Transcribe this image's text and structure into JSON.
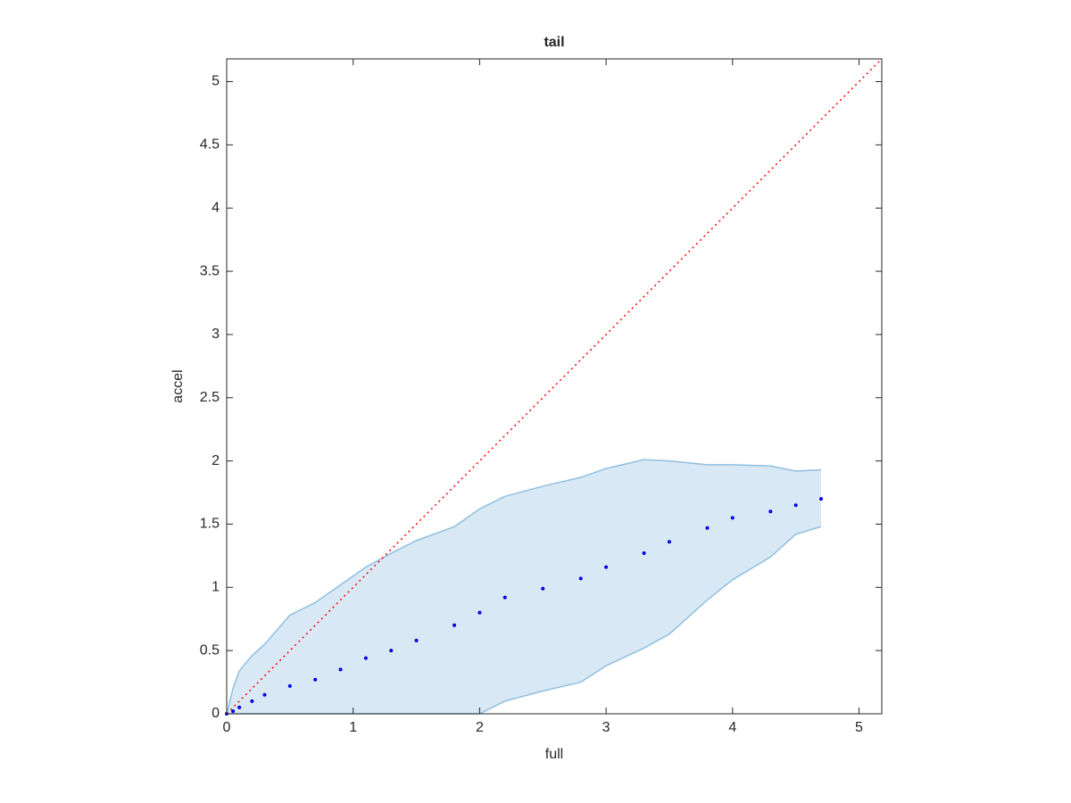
{
  "chart_data": {
    "type": "line",
    "title": "tail",
    "x_label": "full",
    "y_label": "accel",
    "x": [
      0,
      0.05,
      0.1,
      0.2,
      0.3,
      0.5,
      0.7,
      0.9,
      1.1,
      1.3,
      1.5,
      1.8,
      2.0,
      2.2,
      2.5,
      2.8,
      3.0,
      3.3,
      3.5,
      3.8,
      4.0,
      4.3,
      4.5,
      4.7
    ],
    "series": [
      {
        "kind": "band",
        "color": "#d9e8f5",
        "edge_color": "#8fbfe0",
        "lower": [
          0,
          0,
          0,
          0,
          0,
          0,
          0,
          0,
          0,
          0,
          0,
          0,
          0,
          0.1,
          0.18,
          0.25,
          0.38,
          0.52,
          0.63,
          0.9,
          1.06,
          1.24,
          1.42,
          1.48
        ],
        "upper": [
          0,
          0.2,
          0.34,
          0.46,
          0.55,
          0.78,
          0.88,
          1.02,
          1.16,
          1.27,
          1.37,
          1.48,
          1.62,
          1.72,
          1.8,
          1.87,
          1.94,
          2.01,
          2.0,
          1.97,
          1.97,
          1.96,
          1.92,
          1.93
        ]
      },
      {
        "kind": "dots",
        "color": "#0000e6",
        "values": [
          0,
          0.02,
          0.05,
          0.1,
          0.15,
          0.22,
          0.27,
          0.35,
          0.44,
          0.5,
          0.58,
          0.7,
          0.8,
          0.92,
          0.99,
          1.07,
          1.16,
          1.27,
          1.36,
          1.47,
          1.55,
          1.6,
          1.65,
          1.7
        ]
      }
    ],
    "reference_line": {
      "x": [
        0,
        5.18
      ],
      "values": [
        0,
        5.18
      ],
      "color": "#ff0000"
    },
    "xlim": [
      0,
      5.18
    ],
    "ylim": [
      0,
      5.18
    ],
    "xticks": [
      0,
      1,
      2,
      3,
      4,
      5
    ],
    "yticks": [
      0,
      0.5,
      1,
      1.5,
      2,
      2.5,
      3,
      3.5,
      4,
      4.5,
      5
    ]
  }
}
